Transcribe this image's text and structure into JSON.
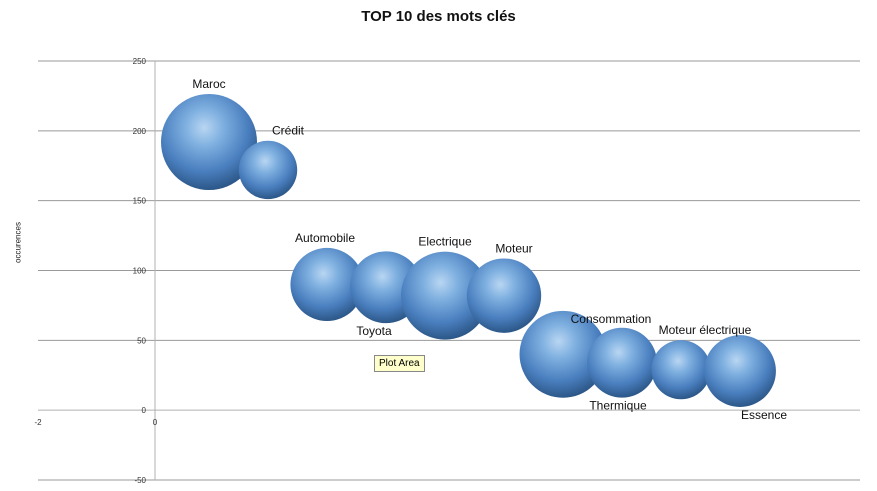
{
  "chart_data": {
    "type": "bubble",
    "title": "TOP 10 des mots clés",
    "ylabel": "occurences",
    "xlabel": "",
    "ylim": [
      -50,
      250
    ],
    "xlim": [
      -2,
      10
    ],
    "y_ticks": [
      "250",
      "200",
      "150",
      "100",
      "50",
      "0",
      "-50"
    ],
    "x_ticks": [
      "-2",
      "0"
    ],
    "grid": true,
    "points": [
      {
        "label": "Maroc",
        "x": 0.5,
        "y": 192,
        "size": 100
      },
      {
        "label": "Crédit",
        "x": 1.0,
        "y": 172,
        "size": 37
      },
      {
        "label": "Automobile",
        "x": 1.5,
        "y": 90,
        "size": 58
      },
      {
        "label": "Toyota",
        "x": 2.0,
        "y": 88,
        "size": 56
      },
      {
        "label": "Electrique",
        "x": 2.5,
        "y": 82,
        "size": 84
      },
      {
        "label": "Moteur",
        "x": 3.0,
        "y": 82,
        "size": 60
      },
      {
        "label": "Consommation",
        "x": 3.5,
        "y": 40,
        "size": 82
      },
      {
        "label": "Thermique",
        "x": 4.0,
        "y": 34,
        "size": 53
      },
      {
        "label": "Moteur électrique",
        "x": 4.5,
        "y": 29,
        "size": 38
      },
      {
        "label": "Essence",
        "x": 5.0,
        "y": 28,
        "size": 56
      }
    ],
    "bubble_color": "#4f86c6"
  },
  "tooltip": "Plot Area"
}
